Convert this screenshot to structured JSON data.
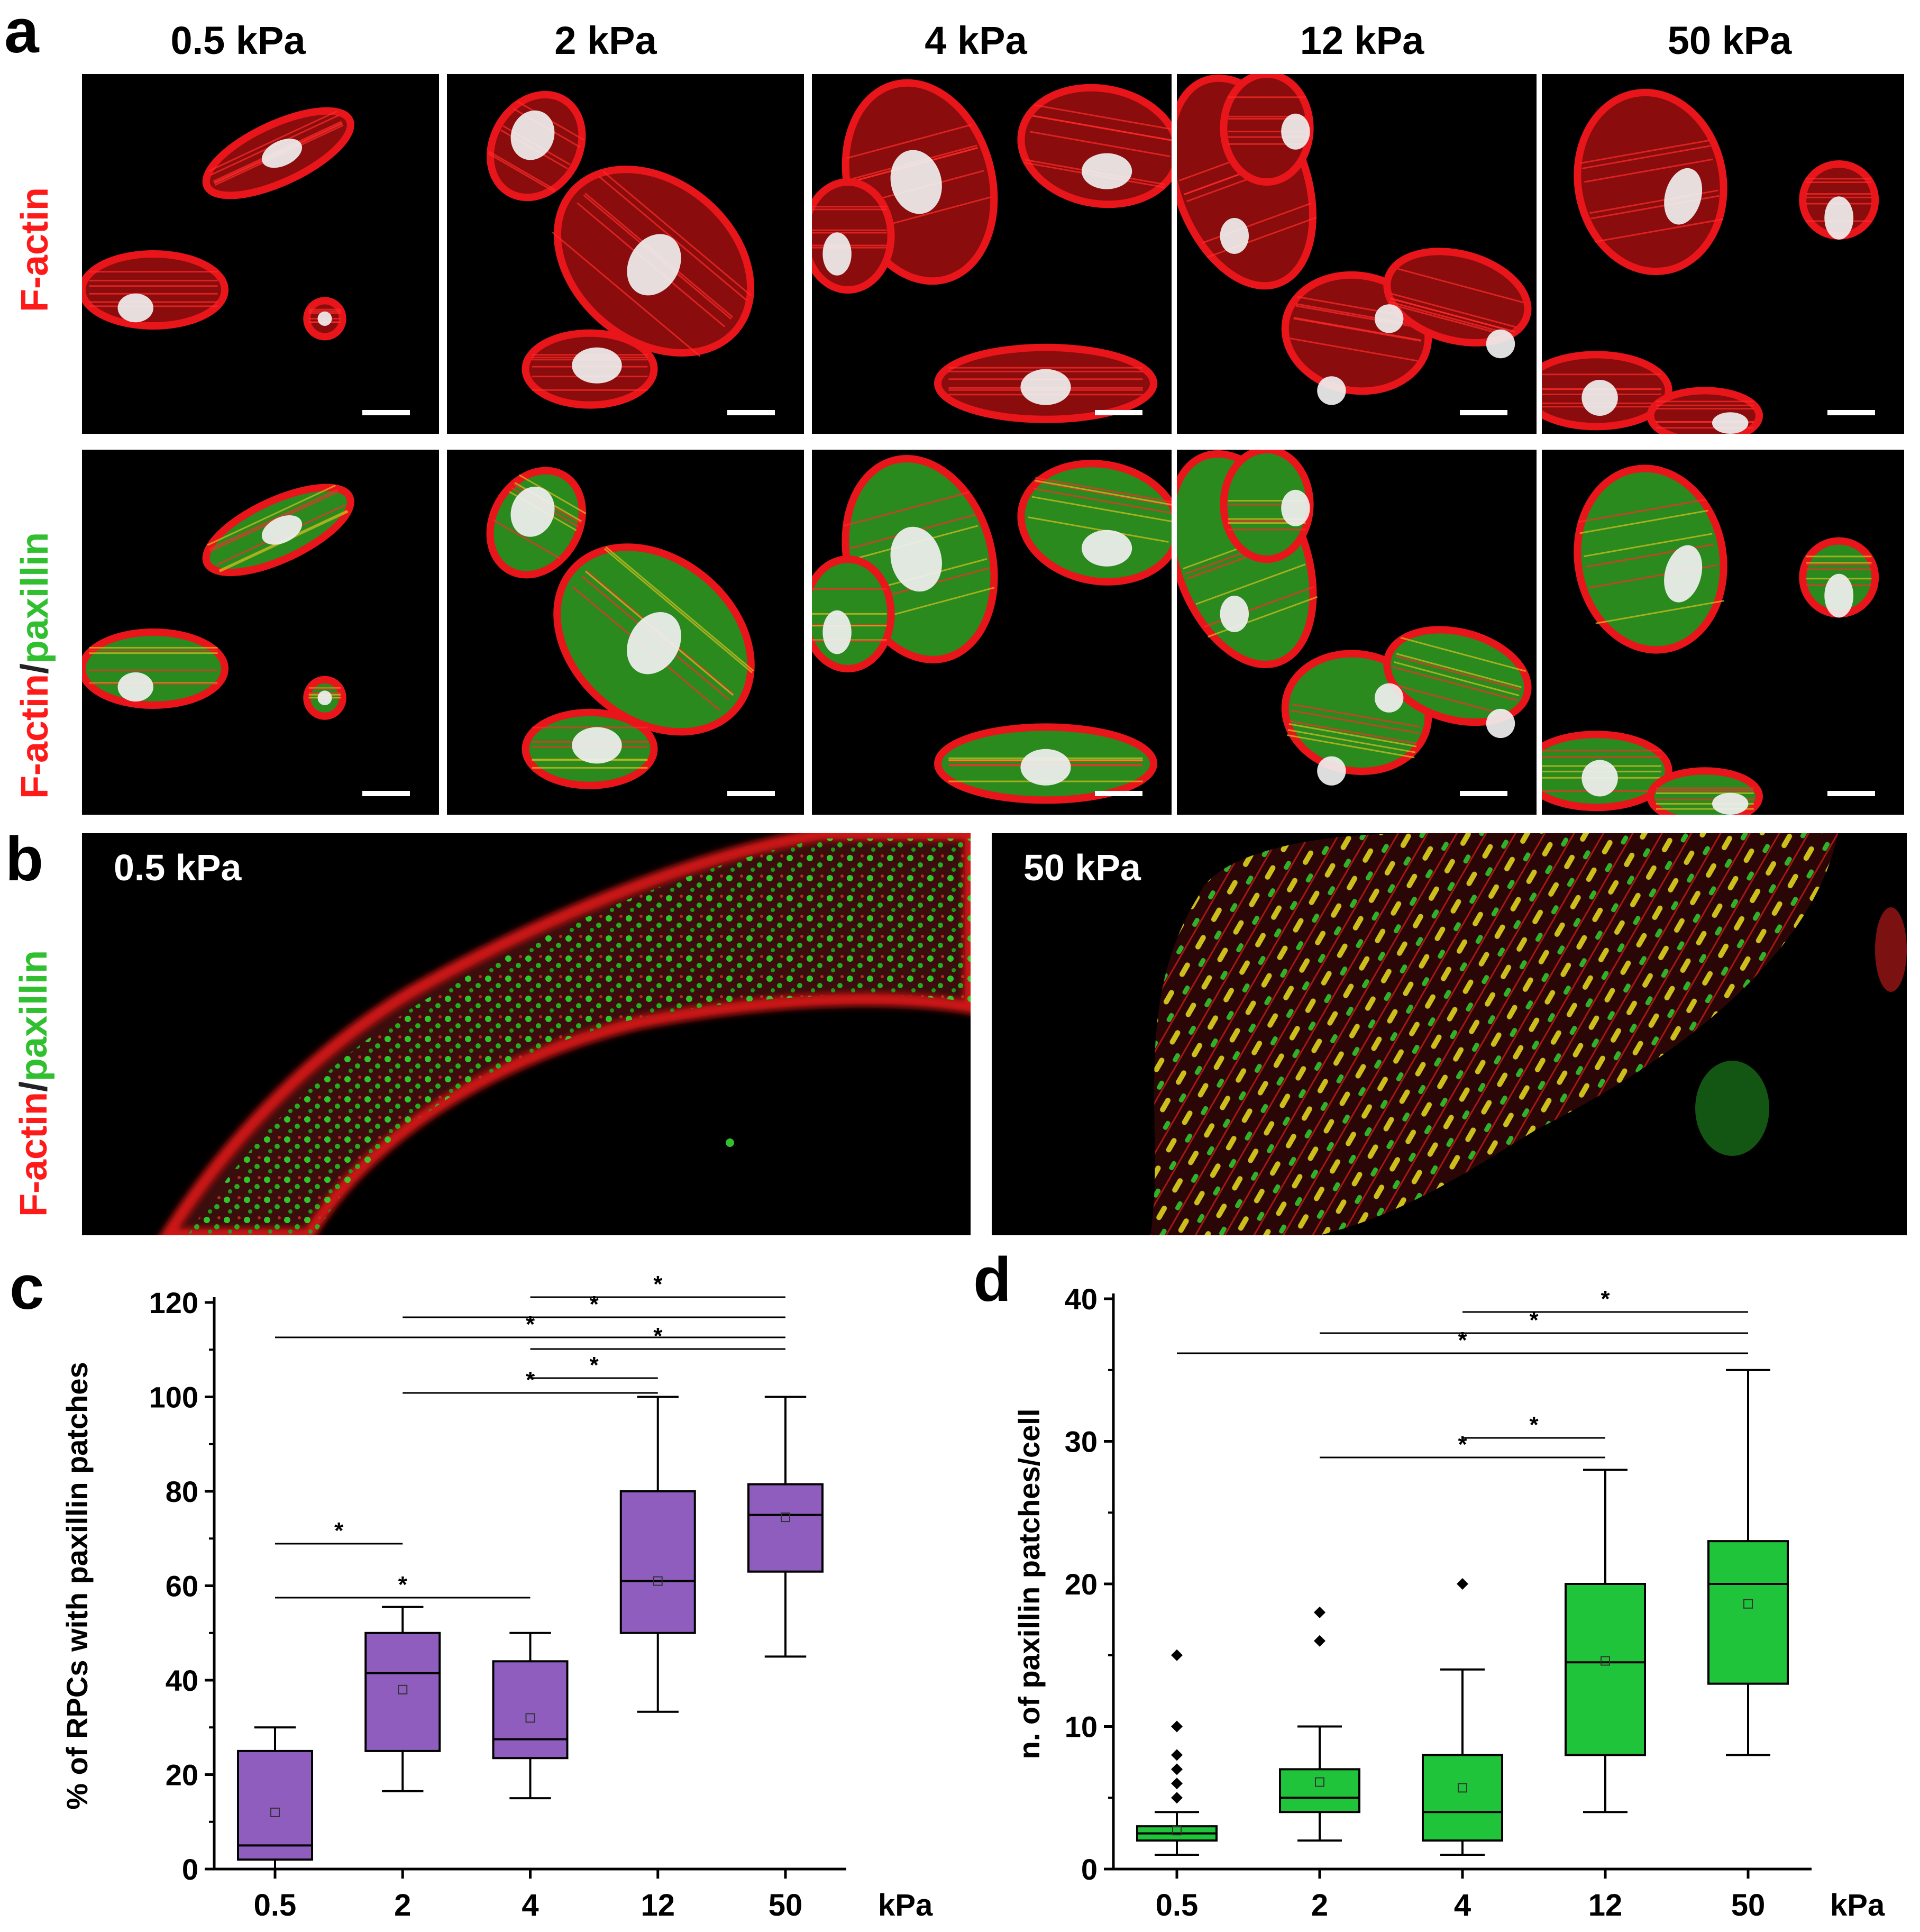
{
  "panels": {
    "a": {
      "letter": "a",
      "columns": [
        "0.5 kPa",
        "2 kPa",
        "4 kPa",
        "12 kPa",
        "50 kPa"
      ],
      "row1_label": {
        "part1": "F-actin"
      },
      "row2_label": {
        "part1": "F-actin",
        "sep": "/",
        "part2": "paxillin"
      }
    },
    "b": {
      "letter": "b",
      "row_label": {
        "part1": "F-actin",
        "sep": "/",
        "part2": "paxillin"
      },
      "insets": [
        "0.5 kPa",
        "50 kPa"
      ]
    },
    "c": {
      "letter": "c"
    },
    "d": {
      "letter": "d"
    }
  },
  "colors": {
    "actin": "#e8151a",
    "paxillin": "#27c227",
    "nucleus": "#f0f0f0",
    "box_c": "#8e5dbd",
    "box_d": "#1fc43a"
  },
  "chart_data": [
    {
      "type": "box",
      "panel": "c",
      "ylabel": "% of RPCs with paxillin patches",
      "xunit": "kPa",
      "categories": [
        "0.5",
        "2",
        "4",
        "12",
        "50"
      ],
      "ylim": [
        0,
        120
      ],
      "yticks": [
        0,
        20,
        40,
        60,
        80,
        100,
        120
      ],
      "boxes": [
        {
          "whisker_low": 0,
          "q1": 2,
          "median": 5,
          "q3": 25,
          "whisker_high": 30,
          "mean": 12,
          "outliers": []
        },
        {
          "whisker_low": 16.5,
          "q1": 25,
          "median": 41.5,
          "q3": 50,
          "whisker_high": 55.5,
          "mean": 38,
          "outliers": []
        },
        {
          "whisker_low": 15,
          "q1": 23.5,
          "median": 27.5,
          "q3": 44,
          "whisker_high": 50,
          "mean": 32,
          "outliers": []
        },
        {
          "whisker_low": 33.3,
          "q1": 50,
          "median": 61,
          "q3": 80,
          "whisker_high": 100,
          "mean": 61,
          "outliers": []
        },
        {
          "whisker_low": 45,
          "q1": 63,
          "median": 75,
          "q3": 81.5,
          "whisker_high": 100,
          "mean": 74.5,
          "outliers": []
        }
      ],
      "significance": [
        {
          "from": "0.5",
          "to": "2",
          "label": "*"
        },
        {
          "from": "0.5",
          "to": "4",
          "label": "*"
        },
        {
          "from": "2",
          "to": "12",
          "label": "*"
        },
        {
          "from": "4",
          "to": "12",
          "label": "*"
        },
        {
          "from": "0.5",
          "to": "50",
          "label": "*"
        },
        {
          "from": "2",
          "to": "50",
          "label": "*"
        },
        {
          "from": "4",
          "to": "50",
          "label": "*"
        },
        {
          "from": "4",
          "to": "50",
          "label": "*"
        }
      ]
    },
    {
      "type": "box",
      "panel": "d",
      "ylabel": "n. of paxillin patches/cell",
      "xunit": "kPa",
      "categories": [
        "0.5",
        "2",
        "4",
        "12",
        "50"
      ],
      "ylim": [
        0,
        40
      ],
      "yticks": [
        0,
        10,
        20,
        30,
        40
      ],
      "boxes": [
        {
          "whisker_low": 1,
          "q1": 2,
          "median": 2.5,
          "q3": 3,
          "whisker_high": 4,
          "mean": 2.7,
          "outliers": [
            5,
            6,
            7,
            8,
            10,
            15
          ]
        },
        {
          "whisker_low": 2,
          "q1": 4,
          "median": 5,
          "q3": 7,
          "whisker_high": 10,
          "mean": 6.1,
          "outliers": [
            16,
            18
          ]
        },
        {
          "whisker_low": 1,
          "q1": 2,
          "median": 4,
          "q3": 8,
          "whisker_high": 14,
          "mean": 5.7,
          "outliers": [
            20
          ]
        },
        {
          "whisker_low": 4,
          "q1": 8,
          "median": 14.5,
          "q3": 20,
          "whisker_high": 28,
          "mean": 14.6,
          "outliers": []
        },
        {
          "whisker_low": 8,
          "q1": 13,
          "median": 20,
          "q3": 23,
          "whisker_high": 35,
          "mean": 18.6,
          "outliers": []
        }
      ],
      "significance": [
        {
          "from": "2",
          "to": "12",
          "label": "*"
        },
        {
          "from": "4",
          "to": "12",
          "label": "*"
        },
        {
          "from": "0.5",
          "to": "50",
          "label": "*"
        },
        {
          "from": "2",
          "to": "50",
          "label": "*"
        },
        {
          "from": "4",
          "to": "50",
          "label": "*"
        }
      ]
    }
  ]
}
